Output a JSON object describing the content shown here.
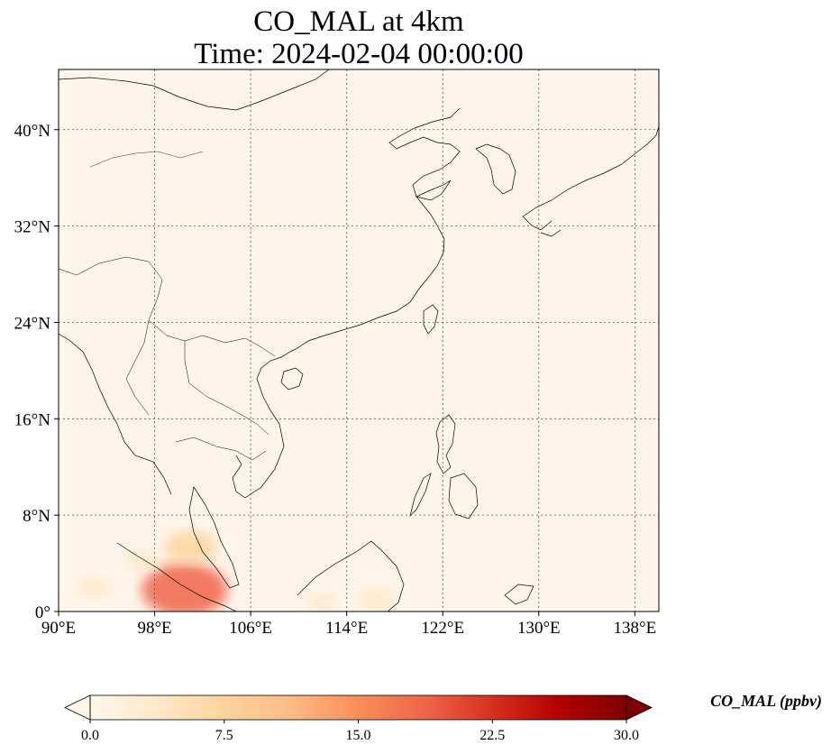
{
  "title": {
    "line1": "CO_MAL at 4km",
    "line2": "Time: 2024-02-04 00:00:00"
  },
  "map": {
    "lon_range": [
      90,
      140
    ],
    "lat_range": [
      0,
      45
    ],
    "lon_ticks": [
      {
        "value": 90,
        "label": "90°E"
      },
      {
        "value": 98,
        "label": "98°E"
      },
      {
        "value": 106,
        "label": "106°E"
      },
      {
        "value": 114,
        "label": "114°E"
      },
      {
        "value": 122,
        "label": "122°E"
      },
      {
        "value": 130,
        "label": "130°E"
      },
      {
        "value": 138,
        "label": "138°E"
      }
    ],
    "lat_ticks": [
      {
        "value": 0,
        "label": "0°"
      },
      {
        "value": 8,
        "label": "8°N"
      },
      {
        "value": 16,
        "label": "16°N"
      },
      {
        "value": 24,
        "label": "24°N"
      },
      {
        "value": 32,
        "label": "32°N"
      },
      {
        "value": 40,
        "label": "40°N"
      }
    ],
    "gridlines": true,
    "background_color": "#fff5eb",
    "coastline_color": "#000000",
    "hotspots": [
      {
        "lon": 100.5,
        "lat": 1.8,
        "value": 17
      },
      {
        "lon": 101.0,
        "lat": 5.3,
        "value": 9
      },
      {
        "lon": 93.0,
        "lat": 2.0,
        "value": 4
      },
      {
        "lon": 97.0,
        "lat": 4.2,
        "value": 4
      },
      {
        "lon": 116.5,
        "lat": 1.0,
        "value": 5
      },
      {
        "lon": 112.0,
        "lat": 0.8,
        "value": 3
      }
    ]
  },
  "colorbar": {
    "label": "CO_MAL (ppbv)",
    "min": 0.0,
    "max": 30.0,
    "ticks": [
      "0.0",
      "7.5",
      "15.0",
      "22.5",
      "30.0"
    ],
    "colormap": "OrRd",
    "extend": "both",
    "colors": [
      "#fff7ec",
      "#fee8c8",
      "#fdd49e",
      "#fdbb84",
      "#fc8d59",
      "#ef6548",
      "#d7301f",
      "#b30000",
      "#7f0000"
    ]
  }
}
